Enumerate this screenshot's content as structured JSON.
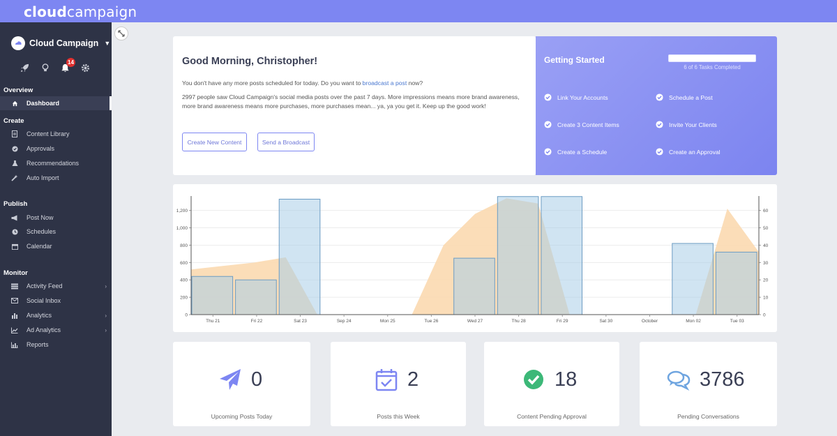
{
  "app": {
    "logo_bold": "cloud",
    "logo_light": "campaign"
  },
  "colors": {
    "accent": "#7d86f2",
    "sidebar": "#2e3346",
    "bar_fill": "#a9cde8",
    "area_fill": "#fbd9b0"
  },
  "account": {
    "name": "Cloud Campaign"
  },
  "notifications": {
    "count": "14"
  },
  "sidebar": {
    "overview": "Overview",
    "dashboard": "Dashboard",
    "create": "Create",
    "content_library": "Content Library",
    "approvals": "Approvals",
    "recommendations": "Recommendations",
    "auto_import": "Auto Import",
    "publish": "Publish",
    "post_now": "Post Now",
    "schedules": "Schedules",
    "calendar": "Calendar",
    "monitor": "Monitor",
    "activity_feed": "Activity Feed",
    "social_inbox": "Social Inbox",
    "analytics": "Analytics",
    "ad_analytics": "Ad Analytics",
    "reports": "Reports"
  },
  "greeting": {
    "title": "Good Morning, Christopher!",
    "line1_pre": "You don't have any more posts scheduled for today. Do you want to ",
    "line1_link": "broadcast a post",
    "line1_post": " now?",
    "line2": "2997 people saw Cloud Campaign's social media posts over the past 7 days. More impressions means more brand awareness, more brand awareness means more purchases, more purchases mean... ya, ya you get it. Keep up the good work!",
    "btn_create": "Create New Content",
    "btn_broadcast": "Send a Broadcast"
  },
  "getting_started": {
    "title": "Getting Started",
    "progress_text": "6 of 6 Tasks Completed",
    "progress_fraction": 1.0,
    "tasks": [
      "Link Your Accounts",
      "Schedule a Post",
      "Create 3 Content Items",
      "Invite Your Clients",
      "Create a Schedule",
      "Create an Approval"
    ]
  },
  "chart_data": {
    "type": "bar",
    "categories": [
      "Thu 21",
      "Fri 22",
      "Sat 23",
      "Sep 24",
      "Mon 25",
      "Tue 26",
      "Wed 27",
      "Thu 28",
      "Fri 29",
      "Sat 30",
      "October",
      "Mon 02",
      "Tue 03"
    ],
    "bars": [
      {
        "x": 0,
        "value": 440
      },
      {
        "x": 1,
        "value": 400
      },
      {
        "x": 2,
        "value": 1330
      },
      {
        "x": 6,
        "value": 650
      },
      {
        "x": 7,
        "value": 1360
      },
      {
        "x": 8,
        "value": 1360
      },
      {
        "x": 11,
        "value": 820
      },
      {
        "x": 12,
        "value": 720
      }
    ],
    "area": [
      {
        "x": 0,
        "value": 26
      },
      {
        "x": 1,
        "value": 28
      },
      {
        "x": 2,
        "value": 30
      },
      {
        "x": 3,
        "value": 33
      },
      {
        "x": 4,
        "value": 0
      },
      {
        "x": 5,
        "value": 0
      },
      {
        "x": 6,
        "value": 0
      },
      {
        "x": 7,
        "value": 0
      },
      {
        "x": 8,
        "value": 40
      },
      {
        "x": 9,
        "value": 58
      },
      {
        "x": 10,
        "value": 67
      },
      {
        "x": 11,
        "value": 64
      },
      {
        "x": 12,
        "value": 0
      },
      {
        "x": 13,
        "value": 0
      },
      {
        "x": 14,
        "value": 0
      },
      {
        "x": 15,
        "value": 0
      },
      {
        "x": 16,
        "value": 0
      },
      {
        "x": 17,
        "value": 61
      },
      {
        "x": 18,
        "value": 36
      }
    ],
    "y_left_ticks": [
      "0",
      "200",
      "400",
      "600",
      "800",
      "1,000",
      "1,200"
    ],
    "y_right_ticks": [
      "0",
      "10",
      "20",
      "30",
      "40",
      "50",
      "60"
    ],
    "ylim_left": [
      0,
      1350
    ],
    "ylim_right": [
      0,
      67.5
    ],
    "grid": true
  },
  "stats": [
    {
      "value": "0",
      "label": "Upcoming Posts Today"
    },
    {
      "value": "2",
      "label": "Posts this Week"
    },
    {
      "value": "18",
      "label": "Content Pending Approval"
    },
    {
      "value": "3786",
      "label": "Pending Conversations"
    }
  ]
}
